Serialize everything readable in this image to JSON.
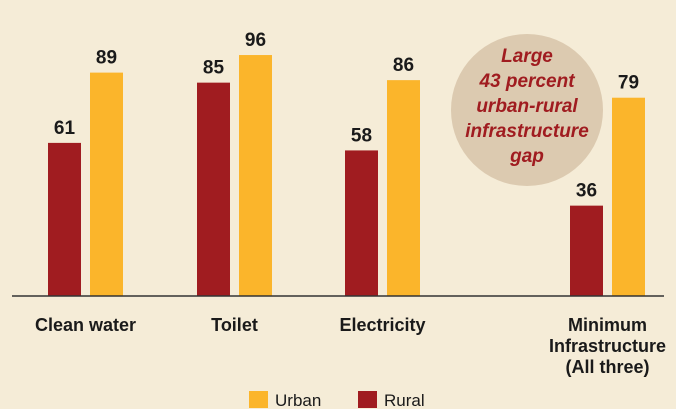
{
  "colors": {
    "background": "#f5ecd7",
    "urban": "#fbb52b",
    "rural": "#a01c20",
    "callout_fill": "#dccab0",
    "callout_text": "#a01c20",
    "axis": "#333333"
  },
  "chart_data": {
    "type": "bar",
    "title": "",
    "xlabel": "",
    "ylabel": "",
    "ylim": [
      0,
      100
    ],
    "grid": false,
    "legend_position": "bottom",
    "categories": [
      [
        "Clean water"
      ],
      [
        "Toilet"
      ],
      [
        "Electricity"
      ],
      [
        "Minimum",
        "Infrastructure",
        "(All three)"
      ]
    ],
    "series": [
      {
        "name": "Rural",
        "color": "#a01c20",
        "values": [
          61,
          85,
          58,
          36
        ]
      },
      {
        "name": "Urban",
        "color": "#fbb52b",
        "values": [
          89,
          96,
          86,
          79
        ]
      }
    ],
    "annotation": {
      "lines": [
        "Large",
        "43 percent",
        "urban-rural",
        "infrastructure",
        "gap"
      ]
    },
    "legend": [
      {
        "label": "Urban",
        "color": "#fbb52b"
      },
      {
        "label": "Rural",
        "color": "#a01c20"
      }
    ]
  }
}
